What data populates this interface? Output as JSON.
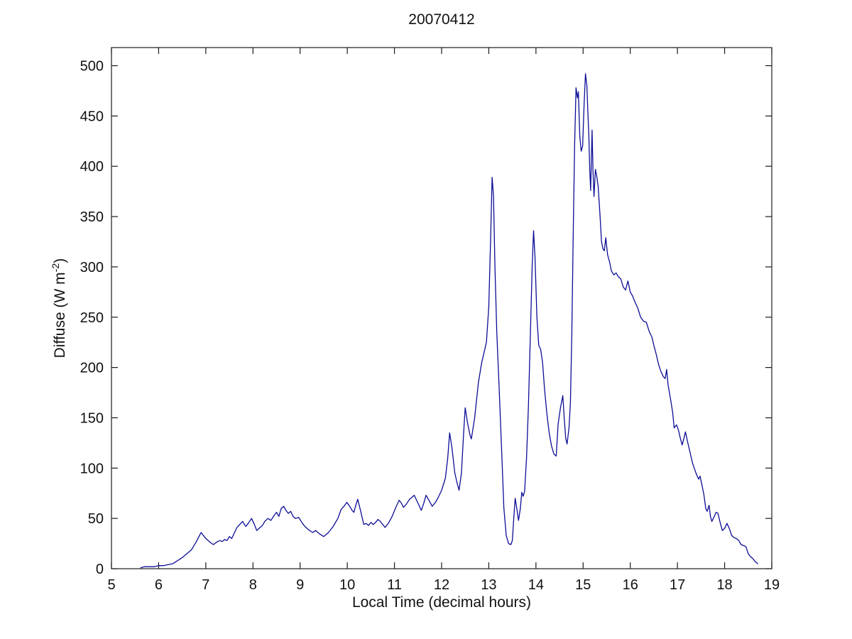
{
  "figure": {
    "title": "20070412",
    "xlabel": "Local Time (decimal hours)",
    "ylabel_main": "Diffuse (W m",
    "ylabel_sup": "-2",
    "ylabel_close": ")",
    "line_color": "#0d0d96",
    "axis_color": "#1a1a1a",
    "background_color": "#ffffff"
  },
  "chart_data": {
    "type": "line",
    "title": "20070412",
    "xlabel": "Local Time (decimal hours)",
    "ylabel": "Diffuse (W m^-2)",
    "xlim": [
      5,
      19
    ],
    "ylim": [
      0,
      518
    ],
    "x_ticks": [
      5,
      6,
      7,
      8,
      9,
      10,
      11,
      12,
      13,
      14,
      15,
      16,
      17,
      18,
      19
    ],
    "y_ticks": [
      0,
      50,
      100,
      150,
      200,
      250,
      300,
      350,
      400,
      450,
      500
    ],
    "grid": false,
    "legend_position": "none",
    "series": [
      {
        "name": "diffuse",
        "color": "#0d0d96",
        "x": [
          5.62,
          5.7,
          5.8,
          5.9,
          6.0,
          6.1,
          6.2,
          6.3,
          6.4,
          6.5,
          6.6,
          6.7,
          6.8,
          6.9,
          6.95,
          7.0,
          7.1,
          7.16,
          7.25,
          7.3,
          7.35,
          7.4,
          7.45,
          7.5,
          7.55,
          7.6,
          7.66,
          7.72,
          7.78,
          7.82,
          7.85,
          7.9,
          7.97,
          8.03,
          8.08,
          8.15,
          8.2,
          8.25,
          8.32,
          8.38,
          8.45,
          8.5,
          8.55,
          8.6,
          8.65,
          8.7,
          8.75,
          8.8,
          8.85,
          8.9,
          8.97,
          9.05,
          9.1,
          9.2,
          9.27,
          9.33,
          9.4,
          9.5,
          9.6,
          9.7,
          9.8,
          9.87,
          9.93,
          9.99,
          10.05,
          10.1,
          10.14,
          10.18,
          10.22,
          10.28,
          10.35,
          10.4,
          10.45,
          10.5,
          10.55,
          10.6,
          10.65,
          10.7,
          10.75,
          10.8,
          10.87,
          10.95,
          11.02,
          11.1,
          11.15,
          11.19,
          11.25,
          11.32,
          11.42,
          11.5,
          11.57,
          11.62,
          11.67,
          11.73,
          11.8,
          11.87,
          11.93,
          12.0,
          12.08,
          12.13,
          12.17,
          12.22,
          12.28,
          12.33,
          12.37,
          12.42,
          12.46,
          12.5,
          12.55,
          12.6,
          12.63,
          12.7,
          12.78,
          12.85,
          12.9,
          12.95,
          13.0,
          13.04,
          13.07,
          13.1,
          13.13,
          13.17,
          13.22,
          13.27,
          13.32,
          13.37,
          13.42,
          13.47,
          13.5,
          13.53,
          13.56,
          13.6,
          13.63,
          13.67,
          13.7,
          13.73,
          13.76,
          13.8,
          13.84,
          13.88,
          13.92,
          13.95,
          13.98,
          14.02,
          14.06,
          14.1,
          14.14,
          14.18,
          14.23,
          14.28,
          14.33,
          14.38,
          14.43,
          14.47,
          14.52,
          14.57,
          14.6,
          14.63,
          14.66,
          14.7,
          14.73,
          14.76,
          14.79,
          14.82,
          14.85,
          14.88,
          14.9,
          14.93,
          14.96,
          14.99,
          15.02,
          15.05,
          15.08,
          15.1,
          15.12,
          15.14,
          15.16,
          15.19,
          15.21,
          15.23,
          15.26,
          15.29,
          15.32,
          15.36,
          15.39,
          15.42,
          15.45,
          15.48,
          15.52,
          15.56,
          15.6,
          15.65,
          15.7,
          15.75,
          15.8,
          15.85,
          15.9,
          15.95,
          16.0,
          16.05,
          16.1,
          16.16,
          16.22,
          16.28,
          16.34,
          16.4,
          16.46,
          16.5,
          16.55,
          16.6,
          16.65,
          16.7,
          16.74,
          16.77,
          16.8,
          16.86,
          16.9,
          16.93,
          16.98,
          17.02,
          17.06,
          17.1,
          17.14,
          17.17,
          17.22,
          17.27,
          17.32,
          17.37,
          17.42,
          17.45,
          17.48,
          17.52,
          17.56,
          17.6,
          17.63,
          17.67,
          17.7,
          17.73,
          17.78,
          17.82,
          17.86,
          17.9,
          17.95,
          18.0,
          18.05,
          18.1,
          18.15,
          18.2,
          18.25,
          18.3,
          18.35,
          18.4,
          18.45,
          18.5,
          18.55,
          18.6,
          18.65,
          18.7
        ],
        "y": [
          1,
          2,
          2,
          2,
          3,
          3,
          4,
          5,
          8,
          11,
          15,
          19,
          27,
          36,
          33,
          30,
          26,
          24,
          27,
          28,
          27,
          29,
          28,
          32,
          30,
          35,
          41,
          44,
          47,
          44,
          42,
          45,
          50,
          44,
          38,
          41,
          43,
          47,
          50,
          48,
          53,
          56,
          52,
          60,
          62,
          58,
          55,
          57,
          52,
          50,
          51,
          45,
          42,
          38,
          36,
          38,
          35,
          32,
          36,
          42,
          50,
          59,
          62,
          66,
          62,
          58,
          56,
          63,
          69,
          58,
          44,
          45,
          43,
          46,
          44,
          46,
          49,
          47,
          44,
          41,
          45,
          52,
          60,
          68,
          65,
          61,
          64,
          69,
          73,
          65,
          58,
          65,
          73,
          68,
          62,
          66,
          71,
          78,
          90,
          110,
          135,
          120,
          95,
          85,
          78,
          95,
          130,
          160,
          145,
          133,
          129,
          150,
          185,
          205,
          215,
          225,
          260,
          330,
          389,
          370,
          300,
          235,
          180,
          120,
          60,
          33,
          25,
          24,
          28,
          50,
          70,
          58,
          48,
          60,
          76,
          72,
          77,
          110,
          160,
          230,
          300,
          336,
          310,
          250,
          222,
          218,
          205,
          180,
          155,
          135,
          122,
          114,
          112,
          144,
          160,
          172,
          150,
          130,
          124,
          140,
          165,
          230,
          330,
          420,
          478,
          468,
          474,
          430,
          415,
          420,
          460,
          492,
          480,
          455,
          432,
          397,
          376,
          436,
          395,
          370,
          397,
          390,
          380,
          350,
          325,
          318,
          316,
          329,
          312,
          305,
          296,
          292,
          294,
          290,
          288,
          280,
          277,
          286,
          275,
          271,
          265,
          259,
          250,
          246,
          245,
          236,
          230,
          222,
          213,
          203,
          196,
          191,
          189,
          198,
          183,
          167,
          155,
          140,
          143,
          138,
          130,
          123,
          130,
          136,
          125,
          115,
          105,
          98,
          92,
          89,
          92,
          83,
          74,
          60,
          57,
          63,
          52,
          47,
          52,
          56,
          55,
          47,
          38,
          40,
          45,
          40,
          33,
          31,
          30,
          28,
          24,
          23,
          22,
          15,
          12,
          10,
          7,
          5
        ]
      }
    ]
  }
}
